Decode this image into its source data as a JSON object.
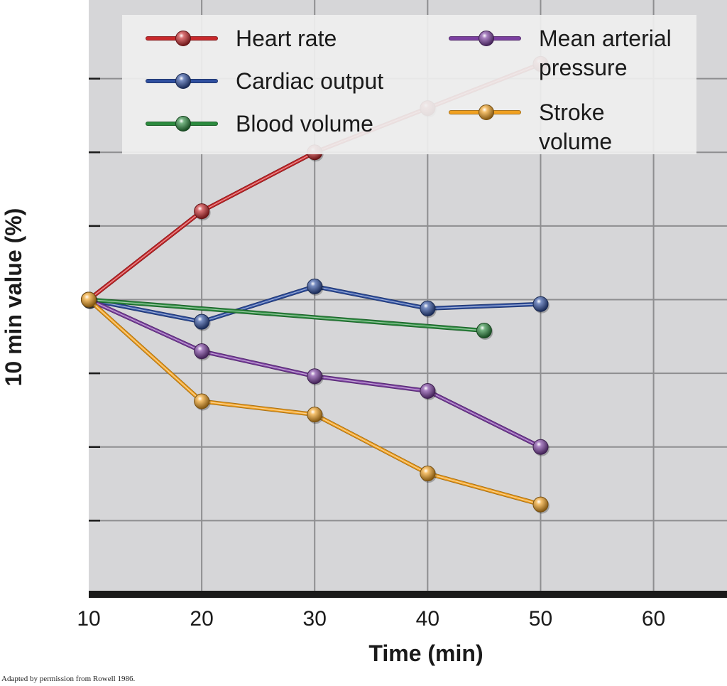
{
  "chart_data": {
    "type": "line",
    "xlabel": "Time (min)",
    "ylabel": "10 min value (%)",
    "x_ticks": [
      10,
      20,
      30,
      40,
      50,
      60
    ],
    "xlim": [
      10,
      66.5
    ],
    "ylim": [
      80,
      120
    ],
    "grid": true,
    "legend_position": "top",
    "series": [
      {
        "name": "Heart rate",
        "color": "#c8282b",
        "x": [
          10,
          20,
          30,
          40,
          50
        ],
        "y": [
          100,
          106,
          110,
          113,
          116
        ]
      },
      {
        "name": "Cardiac output",
        "color": "#2f4fa0",
        "x": [
          10,
          20,
          30,
          40,
          50
        ],
        "y": [
          100,
          98.5,
          100.9,
          99.4,
          99.7
        ]
      },
      {
        "name": "Blood volume",
        "color": "#2b8a3e",
        "x": [
          10,
          45
        ],
        "y": [
          100,
          97.9
        ]
      },
      {
        "name": "Mean arterial pressure",
        "color": "#7b3fa0",
        "label_lines": [
          "Mean arterial",
          "pressure"
        ],
        "x": [
          10,
          20,
          30,
          40,
          50
        ],
        "y": [
          100,
          96.5,
          94.8,
          93.8,
          90
        ]
      },
      {
        "name": "Stroke volume",
        "color": "#f0a020",
        "label_lines": [
          "Stroke",
          "volume"
        ],
        "x": [
          10,
          20,
          30,
          40,
          50
        ],
        "y": [
          100,
          93.1,
          92.2,
          88.2,
          86.1
        ]
      }
    ]
  },
  "credit": "Adapted by permission from Rowell 1986."
}
